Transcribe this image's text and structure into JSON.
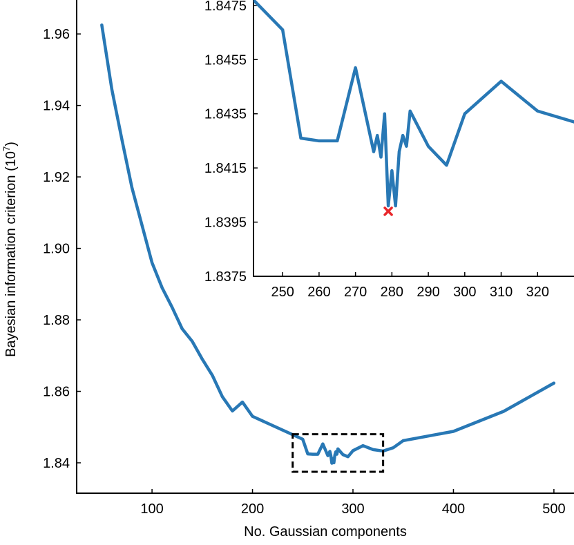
{
  "colors": {
    "series": "#2878b5",
    "marker": "#e8262a",
    "axis": "#000000",
    "box": "#000000"
  },
  "chart_data": [
    {
      "type": "line",
      "title": "",
      "xlabel": "No. Gaussian components",
      "ylabel": "Bayesian information criterion (10",
      "ylabel_exponent": "7",
      "ylabel_suffix": ")",
      "xlim": [
        25,
        520
      ],
      "ylim": [
        1.8315,
        1.9695
      ],
      "xticks": [
        100,
        200,
        300,
        400,
        500
      ],
      "yticks": [
        1.84,
        1.86,
        1.88,
        1.9,
        1.92,
        1.94,
        1.96
      ],
      "ytick_labels": [
        "1.84",
        "1.86",
        "1.88",
        "1.90",
        "1.92",
        "1.94",
        "1.96"
      ],
      "xtick_labels": [
        "100",
        "200",
        "300",
        "400",
        "500"
      ],
      "x": [
        50,
        60,
        70,
        80,
        90,
        100,
        110,
        120,
        130,
        140,
        150,
        160,
        170,
        180,
        190,
        200,
        250,
        255,
        260,
        265,
        270,
        275,
        277,
        278,
        279,
        280,
        281,
        282,
        283,
        284,
        285,
        290,
        295,
        300,
        310,
        320,
        330,
        340,
        350,
        400,
        450,
        500
      ],
      "y": [
        1.9625,
        1.9445,
        1.9305,
        1.917,
        1.9065,
        1.896,
        1.889,
        1.8835,
        1.8775,
        1.874,
        1.869,
        1.8645,
        1.8585,
        1.8545,
        1.857,
        1.853,
        1.8466,
        1.8425,
        1.8424,
        1.8424,
        1.8453,
        1.842,
        1.8432,
        1.842,
        1.8399,
        1.8412,
        1.84,
        1.8422,
        1.8431,
        1.8424,
        1.8439,
        1.8423,
        1.8417,
        1.8434,
        1.8448,
        1.8437,
        1.8433,
        1.8442,
        1.8462,
        1.8488,
        1.8544,
        1.8623
      ],
      "zoom_box": {
        "x": [
          240,
          330
        ],
        "y": [
          1.8375,
          1.848
        ]
      }
    },
    {
      "type": "line",
      "title": "",
      "xlabel": "",
      "ylabel": "",
      "xlim": [
        242,
        330
      ],
      "ylim": [
        1.8375,
        1.8477
      ],
      "xticks": [
        250,
        260,
        270,
        280,
        290,
        300,
        310,
        320
      ],
      "xtick_labels": [
        "250",
        "260",
        "270",
        "280",
        "290",
        "300",
        "310",
        "320"
      ],
      "yticks": [
        1.8375,
        1.8395,
        1.8415,
        1.8435,
        1.8455,
        1.8475
      ],
      "ytick_labels": [
        "1.8375",
        "1.8395",
        "1.8415",
        "1.8435",
        "1.8455",
        "1.8475"
      ],
      "x": [
        242,
        250,
        255,
        260,
        265,
        270,
        275,
        276,
        277,
        278,
        279,
        280,
        281,
        282,
        283,
        284,
        285,
        290,
        295,
        300,
        310,
        320,
        330
      ],
      "y": [
        1.8477,
        1.8466,
        1.8426,
        1.8425,
        1.8425,
        1.8452,
        1.8421,
        1.8427,
        1.8419,
        1.8435,
        1.8401,
        1.8414,
        1.8401,
        1.8421,
        1.8427,
        1.8423,
        1.8436,
        1.8423,
        1.8416,
        1.8435,
        1.8447,
        1.8436,
        1.8432
      ],
      "marker": {
        "x": 279,
        "y": 1.8399,
        "shape": "x"
      }
    }
  ]
}
